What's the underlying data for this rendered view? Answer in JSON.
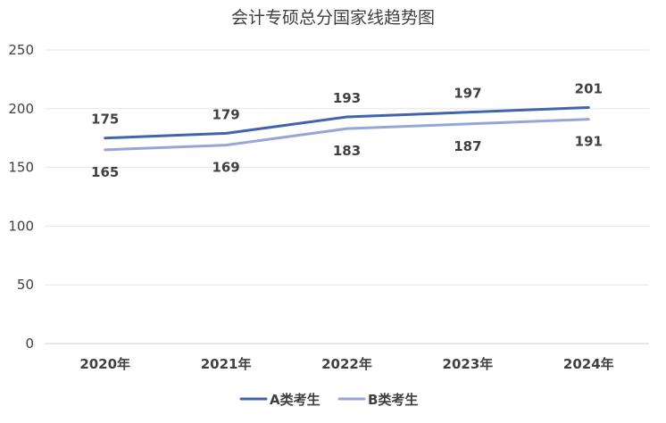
{
  "chart_data": {
    "type": "line",
    "title": "会计专硕总分国家线趋势图",
    "xlabel": "",
    "ylabel": "",
    "categories": [
      "2020年",
      "2021年",
      "2022年",
      "2023年",
      "2024年"
    ],
    "ylim": [
      0,
      250
    ],
    "yticks": [
      0,
      50,
      100,
      150,
      200,
      250
    ],
    "grid": true,
    "legend": "bottom",
    "series": [
      {
        "name": "A类考生",
        "values": [
          175,
          179,
          193,
          197,
          201
        ],
        "color": "#4264AC",
        "label_position": "above"
      },
      {
        "name": "B类考生",
        "values": [
          165,
          169,
          183,
          187,
          191
        ],
        "color": "#96A6D6",
        "label_position": "below"
      }
    ]
  }
}
